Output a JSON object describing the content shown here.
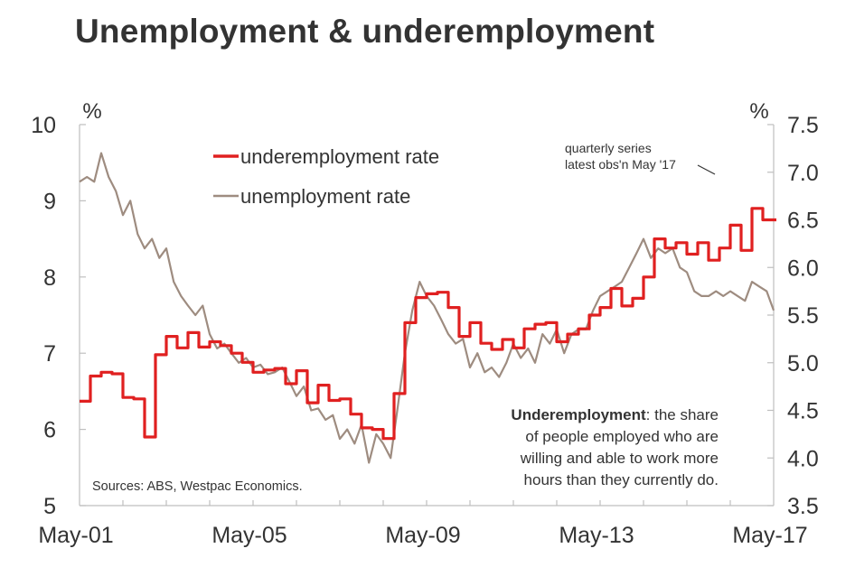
{
  "chart_data": {
    "type": "line",
    "title": "Unemployment & underemployment",
    "x_range": [
      "2001-05",
      "2017-05"
    ],
    "x_ticks": [
      "May-01",
      "May-05",
      "May-09",
      "May-13",
      "May-17"
    ],
    "left_axis": {
      "unit": "%",
      "ylim": [
        5,
        10
      ],
      "ticks": [
        "5",
        "6",
        "7",
        "8",
        "9",
        "10"
      ]
    },
    "right_axis": {
      "unit": "%",
      "ylim": [
        3.5,
        7.5
      ],
      "ticks": [
        "3.5",
        "4.0",
        "4.5",
        "5.0",
        "5.5",
        "6.0",
        "6.5",
        "7.0",
        "7.5"
      ]
    },
    "grid": false,
    "legend_placement": "top-left",
    "series": [
      {
        "name": "underemployment rate",
        "axis": "left",
        "color": "#e02020",
        "step": true,
        "x": [
          2001.33,
          2001.58,
          2001.83,
          2002.08,
          2002.33,
          2002.58,
          2002.83,
          2003.08,
          2003.33,
          2003.58,
          2003.83,
          2004.08,
          2004.33,
          2004.58,
          2004.83,
          2005.08,
          2005.33,
          2005.58,
          2005.83,
          2006.08,
          2006.33,
          2006.58,
          2006.83,
          2007.08,
          2007.33,
          2007.58,
          2007.83,
          2008.08,
          2008.33,
          2008.58,
          2008.83,
          2009.08,
          2009.33,
          2009.58,
          2009.83,
          2010.08,
          2010.33,
          2010.58,
          2010.83,
          2011.08,
          2011.33,
          2011.58,
          2011.83,
          2012.08,
          2012.33,
          2012.58,
          2012.83,
          2013.08,
          2013.33,
          2013.58,
          2013.83,
          2014.08,
          2014.33,
          2014.58,
          2014.83,
          2015.08,
          2015.33,
          2015.58,
          2015.83,
          2016.08,
          2016.33,
          2016.58,
          2016.83,
          2017.08,
          2017.33
        ],
        "y": [
          6.37,
          6.7,
          6.75,
          6.73,
          6.42,
          6.4,
          5.9,
          6.98,
          7.22,
          7.07,
          7.27,
          7.08,
          7.15,
          7.1,
          7.0,
          6.88,
          6.75,
          6.78,
          6.8,
          6.6,
          6.77,
          6.35,
          6.58,
          6.38,
          6.4,
          6.2,
          6.02,
          6.0,
          5.88,
          6.47,
          7.4,
          7.73,
          7.78,
          7.8,
          7.6,
          7.22,
          7.4,
          7.13,
          7.05,
          7.18,
          7.07,
          7.32,
          7.38,
          7.4,
          7.15,
          7.25,
          7.32,
          7.5,
          7.6,
          7.85,
          7.62,
          7.72,
          8.0,
          8.5,
          8.38,
          8.45,
          8.3,
          8.45,
          8.22,
          8.38,
          8.68,
          8.35,
          8.9,
          8.75,
          8.75
        ]
      },
      {
        "name": "unemployment rate",
        "axis": "right",
        "color": "#9e8c80",
        "step": false,
        "x": [
          2001.33,
          2001.5,
          2001.67,
          2001.83,
          2002.0,
          2002.17,
          2002.33,
          2002.5,
          2002.67,
          2002.83,
          2003.0,
          2003.17,
          2003.33,
          2003.5,
          2003.67,
          2003.83,
          2004.0,
          2004.17,
          2004.33,
          2004.5,
          2004.67,
          2004.83,
          2005.0,
          2005.17,
          2005.33,
          2005.5,
          2005.67,
          2005.83,
          2006.0,
          2006.17,
          2006.33,
          2006.5,
          2006.67,
          2006.83,
          2007.0,
          2007.17,
          2007.33,
          2007.5,
          2007.67,
          2007.83,
          2008.0,
          2008.17,
          2008.33,
          2008.5,
          2008.67,
          2008.83,
          2009.0,
          2009.17,
          2009.33,
          2009.5,
          2009.67,
          2009.83,
          2010.0,
          2010.17,
          2010.33,
          2010.5,
          2010.67,
          2010.83,
          2011.0,
          2011.17,
          2011.33,
          2011.5,
          2011.67,
          2011.83,
          2012.0,
          2012.17,
          2012.33,
          2012.5,
          2012.67,
          2012.83,
          2013.0,
          2013.17,
          2013.33,
          2013.5,
          2013.67,
          2013.83,
          2014.0,
          2014.17,
          2014.33,
          2014.5,
          2014.67,
          2014.83,
          2015.0,
          2015.17,
          2015.33,
          2015.5,
          2015.67,
          2015.83,
          2016.0,
          2016.17,
          2016.33,
          2016.5,
          2016.67,
          2016.83,
          2017.0,
          2017.17,
          2017.33
        ],
        "y": [
          6.9,
          6.95,
          6.9,
          7.2,
          6.95,
          6.8,
          6.55,
          6.7,
          6.35,
          6.2,
          6.3,
          6.1,
          6.2,
          5.85,
          5.7,
          5.6,
          5.5,
          5.6,
          5.3,
          5.15,
          5.2,
          5.1,
          5.0,
          5.05,
          4.95,
          4.98,
          4.88,
          4.9,
          4.95,
          4.8,
          4.65,
          4.75,
          4.5,
          4.52,
          4.4,
          4.45,
          4.2,
          4.3,
          4.15,
          4.35,
          3.95,
          4.25,
          4.15,
          4.0,
          4.55,
          5.1,
          5.55,
          5.85,
          5.7,
          5.6,
          5.45,
          5.3,
          5.2,
          5.25,
          4.95,
          5.1,
          4.9,
          4.95,
          4.85,
          5.0,
          5.2,
          5.05,
          5.15,
          5.0,
          5.3,
          5.2,
          5.35,
          5.1,
          5.3,
          5.35,
          5.35,
          5.55,
          5.7,
          5.75,
          5.8,
          5.85,
          6.0,
          6.15,
          6.3,
          6.1,
          6.2,
          6.15,
          6.2,
          6.0,
          5.95,
          5.75,
          5.7,
          5.7,
          5.75,
          5.7,
          5.75,
          5.7,
          5.65,
          5.85,
          5.8,
          5.75,
          5.55
        ]
      }
    ],
    "annotations": {
      "quarterly_line1": "quarterly series",
      "quarterly_line2": "latest obs'n May '17",
      "definition_bold": "Underemployment",
      "definition_line1_rest": ": the share",
      "definition_line2": "of people employed who are",
      "definition_line3": "willing and able to work more",
      "definition_line4": "hours than they currently do.",
      "source": "Sources: ABS, Westpac Economics."
    }
  },
  "colors": {
    "axis": "#bfbfbf",
    "text": "#333333"
  }
}
